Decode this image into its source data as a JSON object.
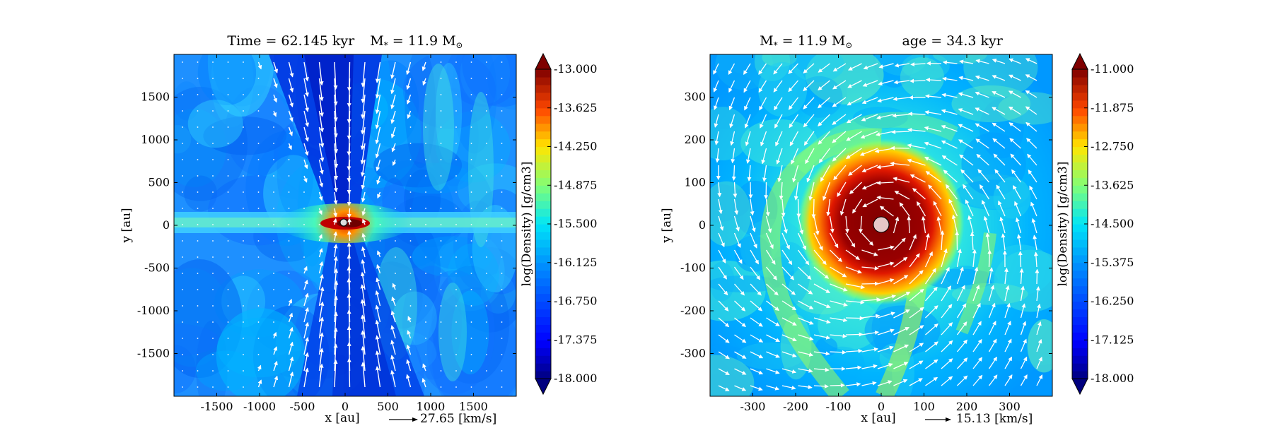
{
  "figure": {
    "colors": {
      "background": "#ffffff",
      "arrow": "#ffffff",
      "axis": "#000000",
      "star_left": "#dddddd",
      "star_right": "#e6c8c8"
    }
  },
  "chart_data": [
    {
      "type": "heatmap",
      "title": "Time = 62.145 kyr    M$_*$ = 11.9 M$_\\odot$",
      "title_parts": {
        "time": "Time = 62.145 kyr",
        "mass": "M",
        "mass_sub": "*",
        "mass_eq": " = 11.9 M",
        "mass_sun": "⊙"
      },
      "xlabel": "x [au]",
      "ylabel": "y [au]",
      "xlim": [
        -2000,
        2000
      ],
      "ylim": [
        -2000,
        2000
      ],
      "xticks": [
        -1500,
        -1000,
        -500,
        0,
        500,
        1000,
        1500
      ],
      "yticks": [
        -1500,
        -1000,
        -500,
        0,
        500,
        1000,
        1500
      ],
      "quiver_key": {
        "label": "27.65 [km/s]"
      },
      "colorbar": {
        "label": "log(Density) [g/cm3]",
        "vmin": -18.0,
        "vmax": -13.0,
        "ticks": [
          "-13.000",
          "-13.625",
          "-14.250",
          "-14.875",
          "-15.500",
          "-16.125",
          "-16.750",
          "-17.375",
          "-18.000"
        ],
        "extend": "both"
      },
      "field_description": "edge-on disk: dense midplane along y=0, low-density bipolar outflow cavities along ±y, star at origin",
      "grid": false
    },
    {
      "type": "heatmap",
      "title": "M$_*$ = 11.9 M$_\\odot$           age = 34.3 kyr",
      "title_parts": {
        "mass": "M",
        "mass_sub": "*",
        "mass_eq": " = 11.9 M",
        "mass_sun": "⊙",
        "age": "age = 34.3 kyr"
      },
      "xlabel": "x [au]",
      "ylabel": "y [au]",
      "xlim": [
        -400,
        400
      ],
      "ylim": [
        -400,
        400
      ],
      "xticks": [
        -300,
        -200,
        -100,
        0,
        100,
        200,
        300
      ],
      "yticks": [
        -300,
        -200,
        -100,
        0,
        100,
        200,
        300
      ],
      "quiver_key": {
        "label": "15.13 [km/s]"
      },
      "colorbar": {
        "label": "log(Density) [g/cm3]",
        "vmin": -18.0,
        "vmax": -11.0,
        "ticks": [
          "-11.000",
          "-11.875",
          "-12.750",
          "-13.625",
          "-14.500",
          "-15.375",
          "-16.250",
          "-17.125",
          "-18.000"
        ],
        "extend": "both"
      },
      "field_description": "face-on disk: dense core radius ~80 au around star, spiral arms, counter-clockwise rotation",
      "grid": false
    }
  ]
}
